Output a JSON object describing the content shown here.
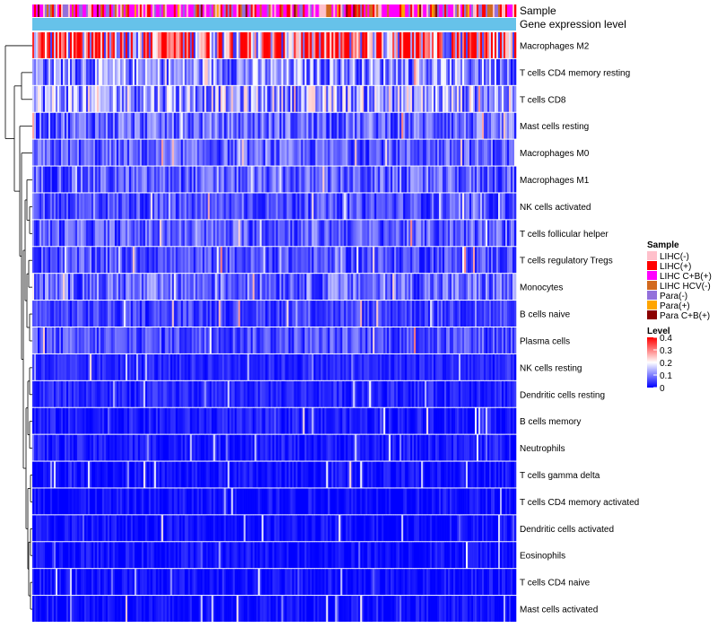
{
  "chart_data": {
    "type": "heatmap",
    "title": "",
    "annotations": {
      "top_label": "Sample",
      "second_label": "Gene expression level",
      "second_color": "#66c2ea"
    },
    "rows": [
      {
        "label": "Macrophages M2",
        "level": 0.3
      },
      {
        "label": "T cells CD4 memory resting",
        "level": 0.11
      },
      {
        "label": "T cells CD8",
        "level": 0.13
      },
      {
        "label": "Mast cells resting",
        "level": 0.08
      },
      {
        "label": "Macrophages M0",
        "level": 0.07
      },
      {
        "label": "Macrophages M1",
        "level": 0.07
      },
      {
        "label": "NK cells activated",
        "level": 0.06
      },
      {
        "label": "T cells follicular helper",
        "level": 0.07
      },
      {
        "label": "T cells regulatory  Tregs",
        "level": 0.06
      },
      {
        "label": "Monocytes",
        "level": 0.08
      },
      {
        "label": "B cells naive",
        "level": 0.05
      },
      {
        "label": "Plasma cells",
        "level": 0.06
      },
      {
        "label": "NK cells resting",
        "level": 0.03
      },
      {
        "label": "Dendritic cells resting",
        "level": 0.03
      },
      {
        "label": "B cells memory",
        "level": 0.02
      },
      {
        "label": "Neutrophils",
        "level": 0.02
      },
      {
        "label": "T cells gamma delta",
        "level": 0.01
      },
      {
        "label": "T cells CD4 memory activated",
        "level": 0.01
      },
      {
        "label": "Dendritic cells activated",
        "level": 0.01
      },
      {
        "label": "Eosinophils",
        "level": 0.01
      },
      {
        "label": "T cells CD4 naive",
        "level": 0.01
      },
      {
        "label": "Mast cells activated",
        "level": 0.01
      }
    ],
    "n_samples": 270,
    "sample_legend": {
      "title": "Sample",
      "entries": [
        {
          "label": "LIHC(-)",
          "color": "#ffc0cb"
        },
        {
          "label": "LIHC(+)",
          "color": "#ff0000"
        },
        {
          "label": "LIHC C+B(+)",
          "color": "#ff00ff"
        },
        {
          "label": "LIHC HCV(-)",
          "color": "#d2691e"
        },
        {
          "label": "Para(-)",
          "color": "#9370db"
        },
        {
          "label": "Para(+)",
          "color": "#ffa500"
        },
        {
          "label": "Para C+B(+)",
          "color": "#8b0000"
        }
      ]
    },
    "level_legend": {
      "title": "Level",
      "ticks": [
        "0.4",
        "0.3",
        "0.2",
        "0.1",
        "0"
      ],
      "range": [
        0,
        0.4
      ],
      "colors": {
        "low": "#0000ff",
        "mid": "#ffffff",
        "high": "#ff0000"
      }
    }
  }
}
